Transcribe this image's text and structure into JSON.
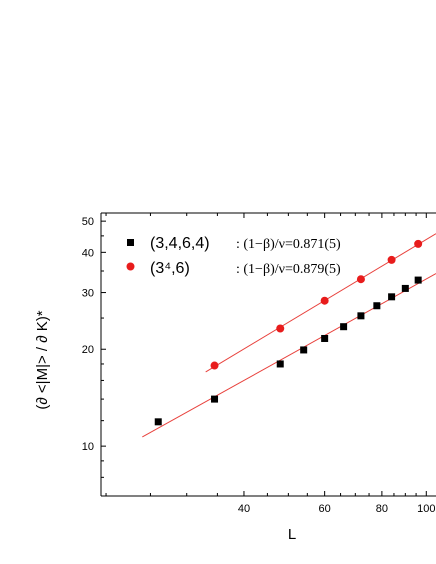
{
  "chart_data": {
    "type": "scatter",
    "x_scale": "log",
    "y_scale": "log",
    "xlabel": "L",
    "ylabel": "(∂ <|M|> / ∂ K)*",
    "xlim": [
      19.5,
      105
    ],
    "ylim": [
      7.0,
      53
    ],
    "x_ticks": [
      40,
      60,
      80,
      100
    ],
    "x_tick_labels": [
      "40",
      "60",
      "80",
      "100"
    ],
    "y_ticks": [
      10,
      20,
      30,
      40,
      50
    ],
    "y_tick_labels": [
      "10",
      "20",
      "30",
      "40",
      "50"
    ],
    "grid": false,
    "legend_position": "top-left",
    "series": [
      {
        "name": "(3,4,6,4)",
        "annotation": ": (1−β)/ν=0.871(5)",
        "marker": "square",
        "color": "#000000",
        "fit_line_color": "#e8413c",
        "x": [
          26,
          34.5,
          48,
          54,
          60,
          66,
          72,
          78,
          84,
          90,
          96
        ],
        "y": [
          11.9,
          14.0,
          18.0,
          19.9,
          21.6,
          23.5,
          25.4,
          27.3,
          29.1,
          30.9,
          32.8
        ]
      },
      {
        "name": "(3⁴,6)",
        "annotation": ": (1−β)/ν=0.879(5)",
        "marker": "circle",
        "color": "#e81c1c",
        "fit_line_color": "#e8413c",
        "x": [
          34.5,
          48,
          60,
          72,
          84,
          96
        ],
        "y": [
          17.8,
          23.2,
          28.3,
          33.0,
          37.9,
          42.5
        ]
      }
    ]
  }
}
